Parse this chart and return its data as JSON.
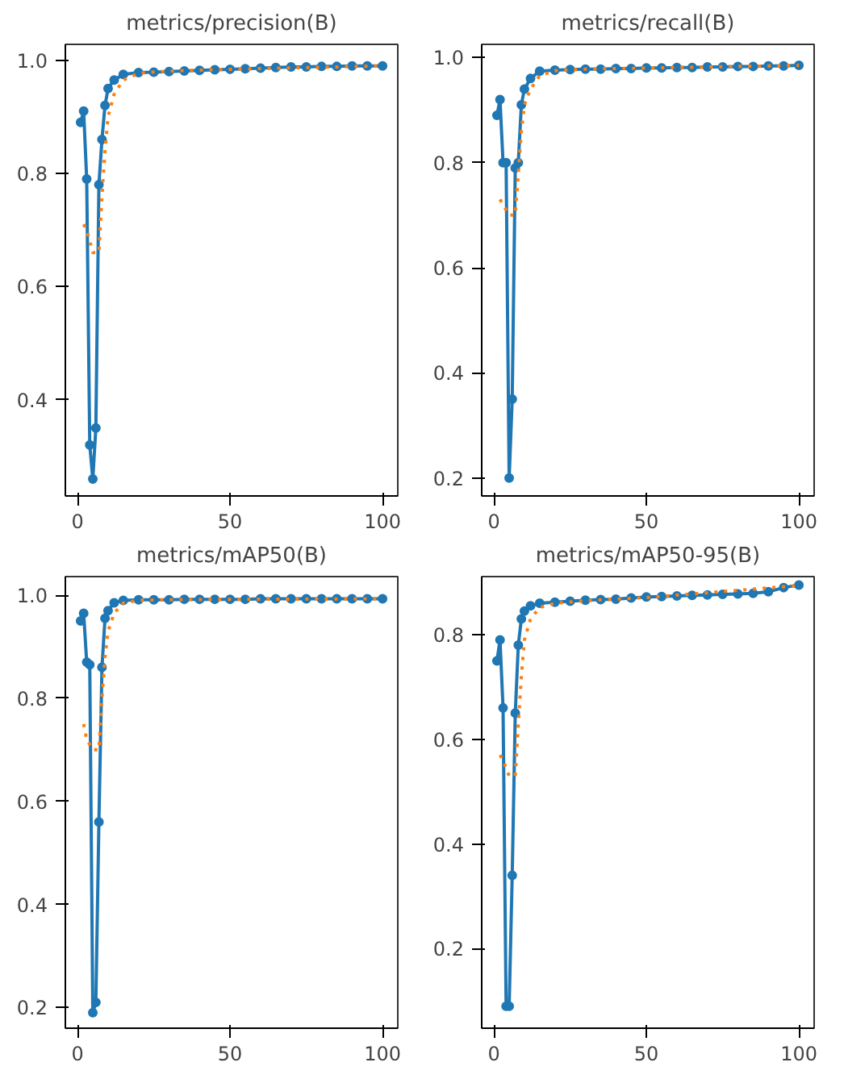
{
  "chart_data": [
    {
      "type": "line",
      "title": "metrics/precision(B)",
      "marker": "circle",
      "xlim": [
        -4,
        105
      ],
      "xticks": [
        0,
        50,
        100
      ],
      "ylim": [
        0.23,
        1.028
      ],
      "yticks": [
        {
          "value": 0.4,
          "label": "0.4"
        },
        {
          "value": 0.6,
          "label": "0.6"
        },
        {
          "value": 0.8,
          "label": "0.8"
        },
        {
          "value": 1.0,
          "label": "1.0"
        }
      ],
      "series": [
        {
          "color": "#1f77b4",
          "x": [
            1,
            2,
            3,
            4,
            5,
            6,
            7,
            8,
            9,
            10,
            12,
            15,
            20,
            25,
            30,
            35,
            40,
            45,
            50,
            55,
            60,
            65,
            70,
            75,
            80,
            85,
            90,
            95,
            100
          ],
          "values": [
            0.89,
            0.91,
            0.79,
            0.32,
            0.26,
            0.35,
            0.78,
            0.86,
            0.92,
            0.95,
            0.965,
            0.975,
            0.978,
            0.979,
            0.98,
            0.981,
            0.982,
            0.983,
            0.984,
            0.985,
            0.986,
            0.987,
            0.988,
            0.988,
            0.989,
            0.989,
            0.99,
            0.99,
            0.99
          ]
        },
        {
          "color": "#ff7f0e",
          "marker": "none",
          "line_style": "dotted",
          "x": [
            2,
            3,
            5,
            7,
            8,
            9,
            10,
            12,
            15,
            20,
            30,
            50,
            100
          ],
          "values": [
            0.71,
            0.7,
            0.66,
            0.66,
            0.76,
            0.84,
            0.9,
            0.94,
            0.965,
            0.977,
            0.981,
            0.984,
            0.99
          ]
        }
      ]
    },
    {
      "type": "line",
      "title": "metrics/recall(B)",
      "marker": "circle",
      "xlim": [
        -4,
        105
      ],
      "xticks": [
        0,
        50,
        100
      ],
      "ylim": [
        0.166,
        1.025
      ],
      "yticks": [
        {
          "value": 0.2,
          "label": "0.2"
        },
        {
          "value": 0.4,
          "label": "0.4"
        },
        {
          "value": 0.6,
          "label": "0.6"
        },
        {
          "value": 0.8,
          "label": "0.8"
        },
        {
          "value": 1.0,
          "label": "1.0"
        }
      ],
      "series": [
        {
          "color": "#1f77b4",
          "x": [
            1,
            2,
            3,
            4,
            5,
            6,
            7,
            8,
            9,
            10,
            12,
            15,
            20,
            25,
            30,
            35,
            40,
            45,
            50,
            55,
            60,
            65,
            70,
            75,
            80,
            85,
            90,
            95,
            100
          ],
          "values": [
            0.89,
            0.92,
            0.8,
            0.8,
            0.2,
            0.35,
            0.79,
            0.8,
            0.91,
            0.94,
            0.96,
            0.974,
            0.976,
            0.977,
            0.978,
            0.978,
            0.979,
            0.979,
            0.98,
            0.98,
            0.981,
            0.981,
            0.982,
            0.982,
            0.983,
            0.983,
            0.984,
            0.984,
            0.985
          ]
        },
        {
          "color": "#ff7f0e",
          "marker": "none",
          "line_style": "dotted",
          "x": [
            2,
            3,
            5,
            7,
            8,
            9,
            10,
            12,
            15,
            20,
            30,
            50,
            100
          ],
          "values": [
            0.73,
            0.72,
            0.7,
            0.7,
            0.78,
            0.86,
            0.91,
            0.94,
            0.965,
            0.975,
            0.978,
            0.98,
            0.985
          ]
        }
      ]
    },
    {
      "type": "line",
      "title": "metrics/mAP50(B)",
      "marker": "circle",
      "xlim": [
        -4,
        105
      ],
      "xticks": [
        0,
        50,
        100
      ],
      "ylim": [
        0.16,
        1.036
      ],
      "yticks": [
        {
          "value": 0.2,
          "label": "0.2"
        },
        {
          "value": 0.4,
          "label": "0.4"
        },
        {
          "value": 0.6,
          "label": "0.6"
        },
        {
          "value": 0.8,
          "label": "0.8"
        },
        {
          "value": 1.0,
          "label": "1.0"
        }
      ],
      "series": [
        {
          "color": "#1f77b4",
          "x": [
            1,
            2,
            3,
            4,
            5,
            6,
            7,
            8,
            9,
            10,
            12,
            15,
            20,
            25,
            30,
            35,
            40,
            45,
            50,
            55,
            60,
            65,
            70,
            75,
            80,
            85,
            90,
            95,
            100
          ],
          "values": [
            0.95,
            0.965,
            0.87,
            0.865,
            0.19,
            0.21,
            0.56,
            0.86,
            0.955,
            0.97,
            0.985,
            0.99,
            0.991,
            0.991,
            0.991,
            0.992,
            0.992,
            0.992,
            0.992,
            0.992,
            0.993,
            0.993,
            0.993,
            0.993,
            0.993,
            0.993,
            0.993,
            0.993,
            0.993
          ]
        },
        {
          "color": "#ff7f0e",
          "marker": "none",
          "line_style": "dotted",
          "x": [
            2,
            3,
            5,
            7,
            8,
            9,
            10,
            12,
            15,
            20,
            30,
            50,
            100
          ],
          "values": [
            0.75,
            0.72,
            0.7,
            0.7,
            0.8,
            0.88,
            0.93,
            0.965,
            0.985,
            0.99,
            0.991,
            0.992,
            0.993
          ]
        }
      ]
    },
    {
      "type": "line",
      "title": "metrics/mAP50-95(B)",
      "marker": "circle",
      "xlim": [
        -4,
        105
      ],
      "xticks": [
        0,
        50,
        100
      ],
      "ylim": [
        0.048,
        0.911
      ],
      "yticks": [
        {
          "value": 0.2,
          "label": "0.2"
        },
        {
          "value": 0.4,
          "label": "0.4"
        },
        {
          "value": 0.6,
          "label": "0.6"
        },
        {
          "value": 0.8,
          "label": "0.8"
        }
      ],
      "series": [
        {
          "color": "#1f77b4",
          "x": [
            1,
            2,
            3,
            4,
            5,
            6,
            7,
            8,
            9,
            10,
            12,
            15,
            20,
            25,
            30,
            35,
            40,
            45,
            50,
            55,
            60,
            65,
            70,
            75,
            80,
            85,
            90,
            95,
            100
          ],
          "values": [
            0.75,
            0.79,
            0.66,
            0.09,
            0.09,
            0.34,
            0.65,
            0.78,
            0.83,
            0.845,
            0.855,
            0.86,
            0.862,
            0.864,
            0.866,
            0.867,
            0.868,
            0.87,
            0.872,
            0.873,
            0.874,
            0.875,
            0.876,
            0.877,
            0.878,
            0.879,
            0.882,
            0.89,
            0.895
          ]
        },
        {
          "color": "#ff7f0e",
          "marker": "none",
          "line_style": "dotted",
          "x": [
            2,
            3,
            5,
            7,
            8,
            9,
            10,
            12,
            15,
            20,
            30,
            50,
            100
          ],
          "values": [
            0.57,
            0.56,
            0.53,
            0.53,
            0.63,
            0.72,
            0.79,
            0.83,
            0.852,
            0.86,
            0.865,
            0.871,
            0.894
          ]
        }
      ]
    }
  ]
}
